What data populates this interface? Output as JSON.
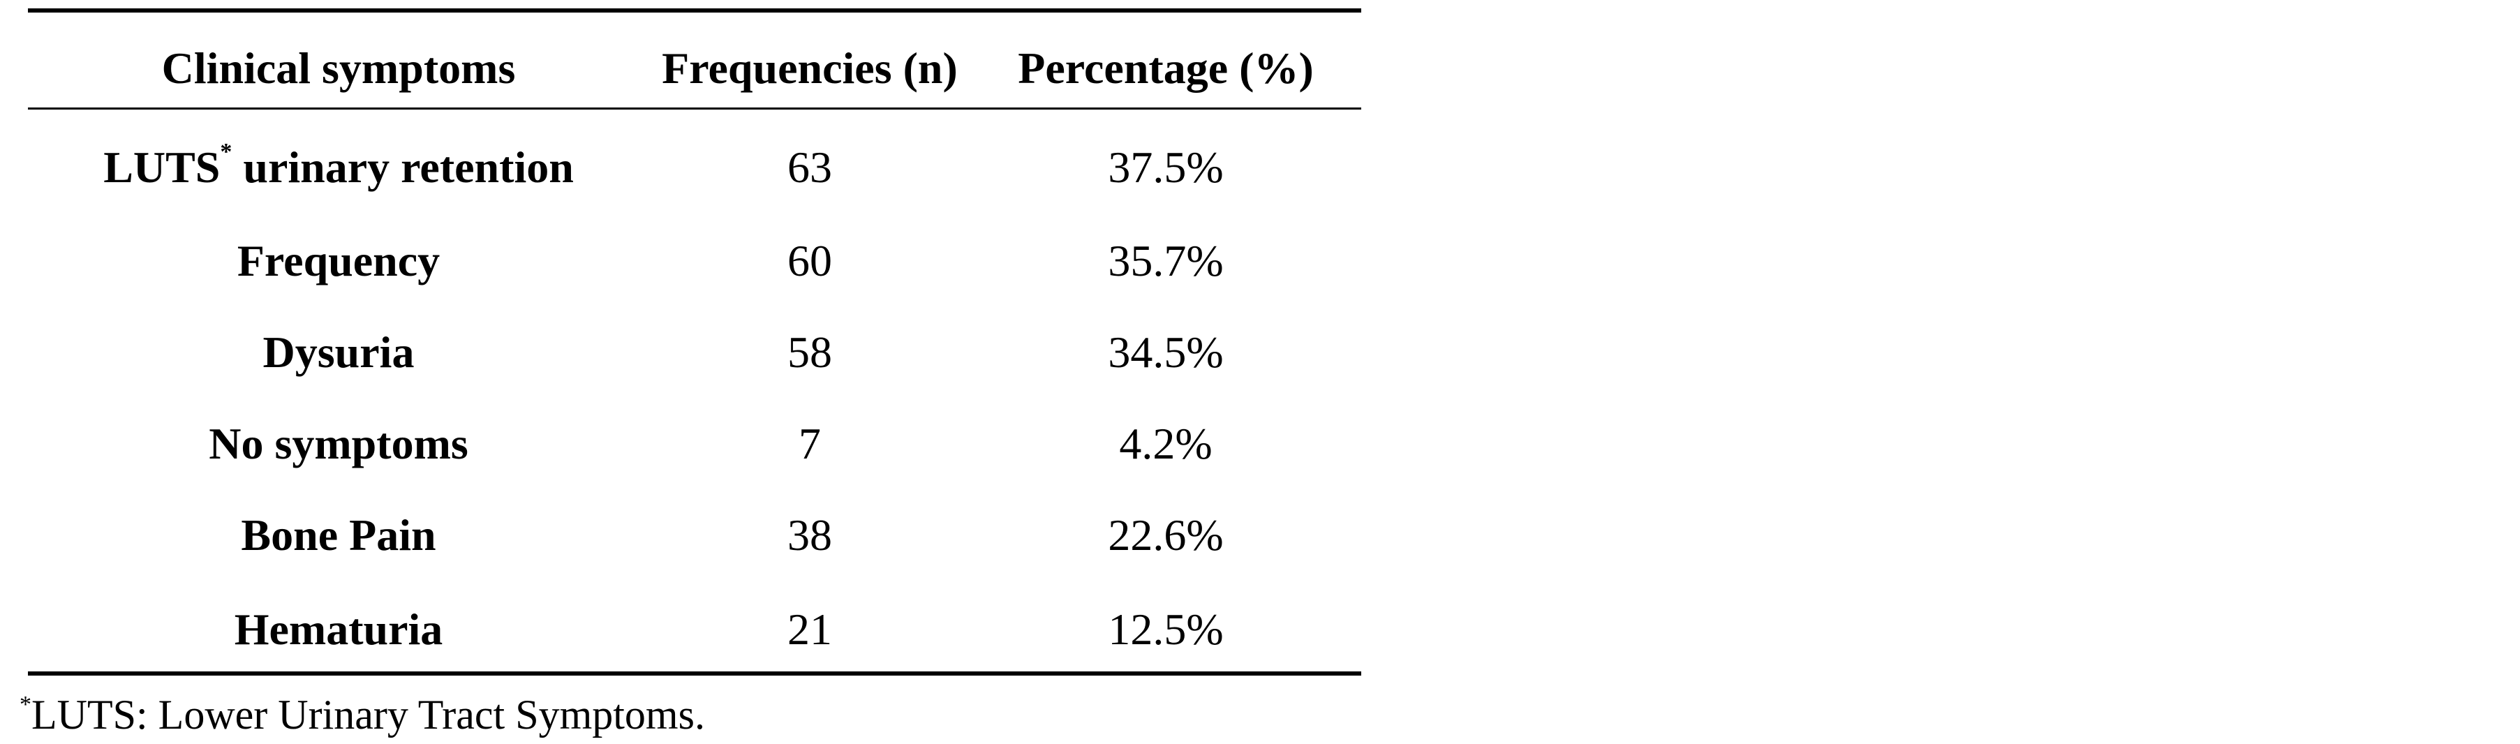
{
  "table": {
    "headers": [
      "Clinical symptoms",
      "Frequencies (n)",
      "Percentage (%)"
    ],
    "rows": [
      {
        "symptom": "LUTS",
        "marker": "*",
        "symptom_suffix": " urinary retention",
        "n": "63",
        "pct": "37.5%"
      },
      {
        "symptom": "Frequency",
        "marker": "",
        "symptom_suffix": "",
        "n": "60",
        "pct": "35.7%"
      },
      {
        "symptom": "Dysuria",
        "marker": "",
        "symptom_suffix": "",
        "n": "58",
        "pct": "34.5%"
      },
      {
        "symptom": "No symptoms",
        "marker": "",
        "symptom_suffix": "",
        "n": "7",
        "pct": "4.2%"
      },
      {
        "symptom": "Bone Pain",
        "marker": "",
        "symptom_suffix": "",
        "n": "38",
        "pct": "22.6%"
      },
      {
        "symptom": "Hematuria",
        "marker": "",
        "symptom_suffix": "",
        "n": "21",
        "pct": "12.5%"
      }
    ]
  },
  "footnote": {
    "marker": "*",
    "text": "LUTS: Lower Urinary Tract Symptoms."
  }
}
